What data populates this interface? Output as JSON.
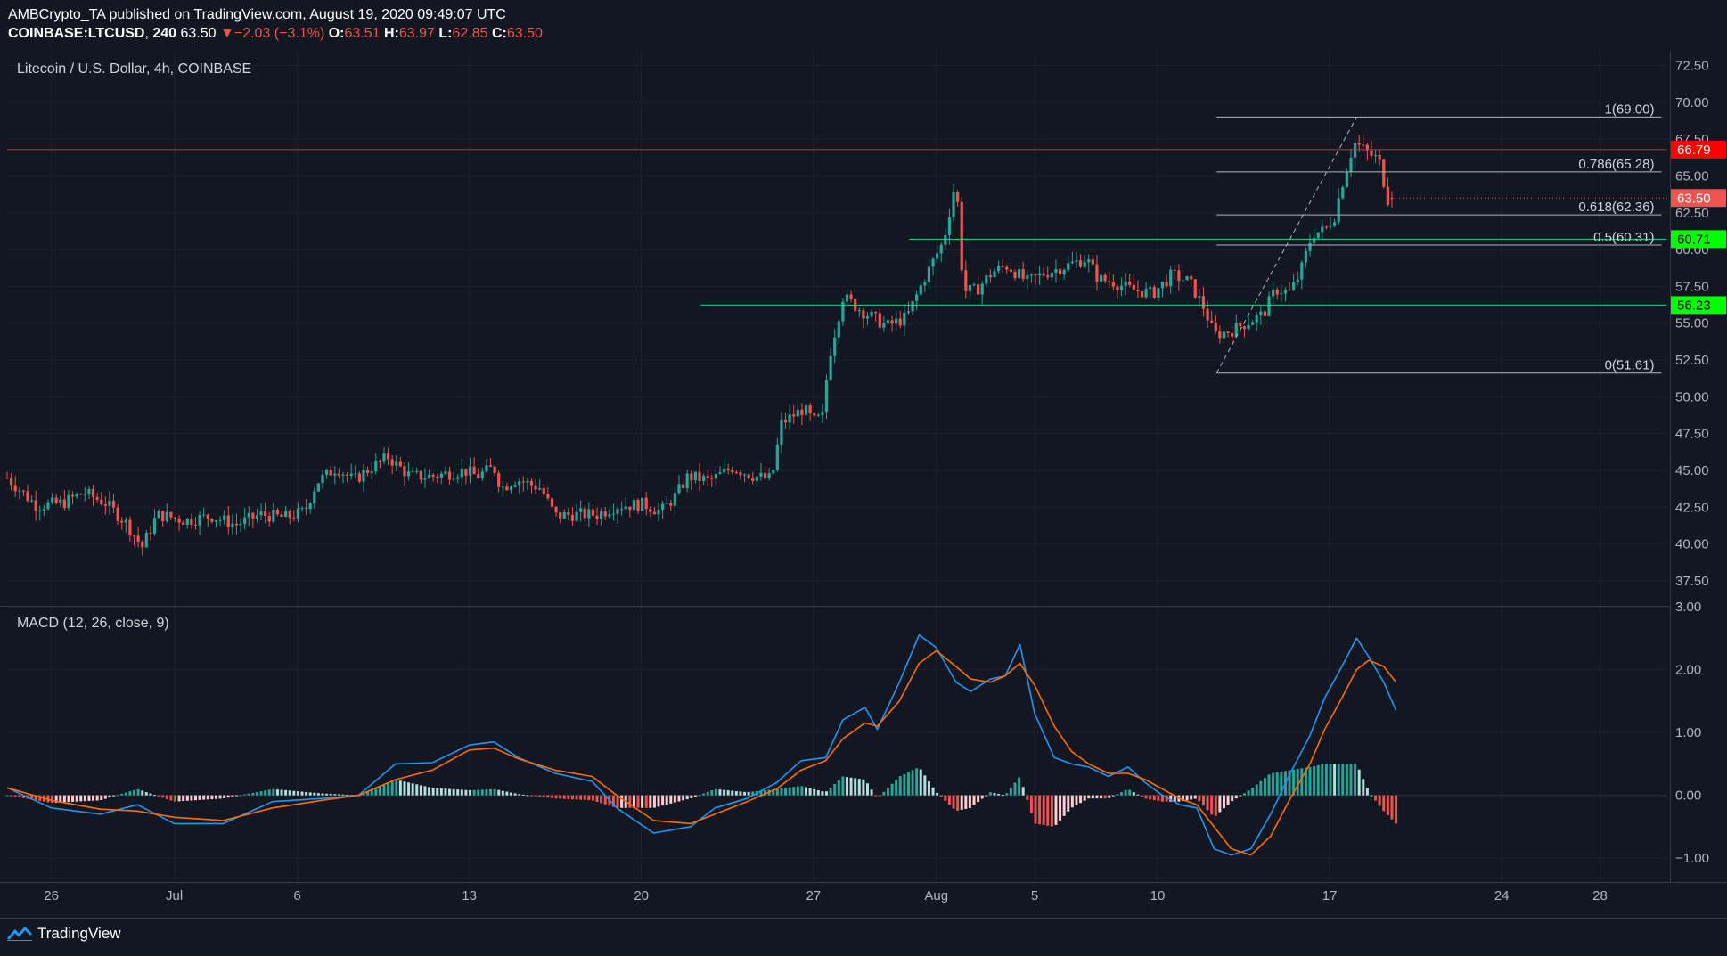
{
  "header": {
    "published_line": "AMBCrypto_TA published on TradingView.com, August 19, 2020 09:49:07 UTC",
    "symbol": "COINBASE:LTCUSD",
    "interval": "240",
    "last": "63.50",
    "change": "▼−2.03 (−3.1%)",
    "o_label": "O:",
    "o_value": "63.51",
    "h_label": "H:",
    "h_value": "63.97",
    "l_label": "L:",
    "l_value": "62.85",
    "c_label": "C:",
    "c_value": "63.50"
  },
  "footer": {
    "brand": "TradingView"
  },
  "colors": {
    "background": "#131722",
    "up": "#26a69a",
    "down": "#ef5350",
    "macd_line": "#2196f3",
    "signal_line": "#ff6d00",
    "resistance": "#ff1744",
    "support": "#00e676",
    "fib": "#b2b5be"
  },
  "chart_data": [
    {
      "type": "candlestick",
      "title": "Litecoin / U.S. Dollar, 4h, COINBASE",
      "y_ticks": [
        "72.50",
        "70.00",
        "67.50",
        "65.00",
        "62.50",
        "60.00",
        "57.50",
        "55.00",
        "52.50",
        "50.00",
        "47.50",
        "45.00",
        "42.50",
        "40.00",
        "37.50"
      ],
      "ylim": [
        35.8,
        73.5
      ],
      "x_ticks": [
        "26",
        "Jul",
        "6",
        "13",
        "20",
        "27",
        "Aug",
        "5",
        "10",
        "17",
        "24",
        "28"
      ],
      "x_tick_days": [
        0,
        5,
        10,
        17,
        24,
        31,
        36,
        40,
        45,
        52,
        59,
        63
      ],
      "x_domain_days": [
        -1.8,
        65.7
      ],
      "x_axis_reference": "June 26, 2020 = day 0",
      "anchor_points": [
        [
          -1.8,
          44.5
        ],
        [
          -0.6,
          42.6
        ],
        [
          0.5,
          42.8
        ],
        [
          1.3,
          43.5
        ],
        [
          2.2,
          42.8
        ],
        [
          3.0,
          41.5
        ],
        [
          3.7,
          39.8
        ],
        [
          4.3,
          42.0
        ],
        [
          5.5,
          41.6
        ],
        [
          6.5,
          41.9
        ],
        [
          7.5,
          41.3
        ],
        [
          8.5,
          42.0
        ],
        [
          9.5,
          41.8
        ],
        [
          10.3,
          42.2
        ],
        [
          10.8,
          44.2
        ],
        [
          11.6,
          45.2
        ],
        [
          12.3,
          44.3
        ],
        [
          13.0,
          45.2
        ],
        [
          13.7,
          45.9
        ],
        [
          14.6,
          44.6
        ],
        [
          15.5,
          44.6
        ],
        [
          16.8,
          45.0
        ],
        [
          17.3,
          44.6
        ],
        [
          18.0,
          45.2
        ],
        [
          18.3,
          43.8
        ],
        [
          18.9,
          44.4
        ],
        [
          19.9,
          43.8
        ],
        [
          20.5,
          41.9
        ],
        [
          21.2,
          42.0
        ],
        [
          22.2,
          42.0
        ],
        [
          23.0,
          42.6
        ],
        [
          24.1,
          42.7
        ],
        [
          24.8,
          42.2
        ],
        [
          25.4,
          43.3
        ],
        [
          25.9,
          44.6
        ],
        [
          26.8,
          44.3
        ],
        [
          27.7,
          45.2
        ],
        [
          28.6,
          44.6
        ],
        [
          29.3,
          44.4
        ],
        [
          29.7,
          48.2
        ],
        [
          30.6,
          49.2
        ],
        [
          31.0,
          48.3
        ],
        [
          31.4,
          48.7
        ],
        [
          31.6,
          52.4
        ],
        [
          32.2,
          56.8
        ],
        [
          33.0,
          55.8
        ],
        [
          34.0,
          54.8
        ],
        [
          34.8,
          55.4
        ],
        [
          35.5,
          58.0
        ],
        [
          36.3,
          60.6
        ],
        [
          36.8,
          64.8
        ],
        [
          37.1,
          57.2
        ],
        [
          37.6,
          57.2
        ],
        [
          38.3,
          58.5
        ],
        [
          38.9,
          58.9
        ],
        [
          39.7,
          57.8
        ],
        [
          40.4,
          58.4
        ],
        [
          41.3,
          58.9
        ],
        [
          42.1,
          59.4
        ],
        [
          42.6,
          58.0
        ],
        [
          43.2,
          57.8
        ],
        [
          43.9,
          57.3
        ],
        [
          44.8,
          57.0
        ],
        [
          45.6,
          58.3
        ],
        [
          46.3,
          57.8
        ],
        [
          46.9,
          56.0
        ],
        [
          47.3,
          54.2
        ],
        [
          48.0,
          54.5
        ],
        [
          48.8,
          55.2
        ],
        [
          49.3,
          55.6
        ],
        [
          49.8,
          57.3
        ],
        [
          50.4,
          57.1
        ],
        [
          50.8,
          58.4
        ],
        [
          51.3,
          61.1
        ],
        [
          51.8,
          61.3
        ],
        [
          52.2,
          62.3
        ],
        [
          52.5,
          64.4
        ],
        [
          53.0,
          67.3
        ],
        [
          53.6,
          66.5
        ],
        [
          54.0,
          66.1
        ],
        [
          54.4,
          63.2
        ],
        [
          54.6,
          63.5
        ]
      ],
      "series": [
        {
          "name": "Candles (OHLC, 4h)"
        }
      ],
      "horizontal_levels": [
        {
          "name": "resistance",
          "value": 66.79,
          "label": "66.79",
          "start_day": -1.8
        },
        {
          "name": "support-upper",
          "value": 60.71,
          "label": "60.71",
          "start_day": 34.9
        },
        {
          "name": "support-lower",
          "value": 56.23,
          "label": "56.23",
          "start_day": 26.4
        }
      ],
      "last_price": {
        "value": 63.5,
        "label": "63.50"
      },
      "fibonacci": {
        "start_day": 47.4,
        "end_day": 65.5,
        "levels": [
          {
            "ratio": "1",
            "value": 69.0,
            "label": "1(69.00)"
          },
          {
            "ratio": "0.786",
            "value": 65.28,
            "label": "0.786(65.28)"
          },
          {
            "ratio": "0.618",
            "value": 62.36,
            "label": "0.618(62.36)"
          },
          {
            "ratio": "0.5",
            "value": 60.31,
            "label": "0.5(60.31)"
          },
          {
            "ratio": "0",
            "value": 51.61,
            "label": "0(51.61)"
          }
        ],
        "trend_line": {
          "from": [
            47.4,
            51.61
          ],
          "to": [
            53.1,
            69.0
          ]
        }
      }
    },
    {
      "type": "line",
      "title": "MACD (12, 26, close, 9)",
      "y_ticks": [
        "3.00",
        "2.00",
        "1.00",
        "0.00",
        "−1.00"
      ],
      "ylim": [
        -1.38,
        3.0
      ],
      "series": [
        {
          "name": "MACD",
          "points": [
            [
              -1.8,
              0.12
            ],
            [
              0,
              -0.2
            ],
            [
              2,
              -0.3
            ],
            [
              3.5,
              -0.15
            ],
            [
              5,
              -0.45
            ],
            [
              7,
              -0.45
            ],
            [
              9,
              -0.1
            ],
            [
              11,
              -0.05
            ],
            [
              12.5,
              0.0
            ],
            [
              14,
              0.5
            ],
            [
              15.5,
              0.52
            ],
            [
              17,
              0.8
            ],
            [
              18,
              0.85
            ],
            [
              19,
              0.6
            ],
            [
              20.5,
              0.35
            ],
            [
              22,
              0.22
            ],
            [
              23,
              -0.2
            ],
            [
              24.5,
              -0.6
            ],
            [
              26,
              -0.5
            ],
            [
              27,
              -0.2
            ],
            [
              28.3,
              -0.05
            ],
            [
              29.5,
              0.2
            ],
            [
              30.5,
              0.55
            ],
            [
              31.5,
              0.6
            ],
            [
              32.2,
              1.2
            ],
            [
              33.1,
              1.4
            ],
            [
              33.6,
              1.05
            ],
            [
              34.5,
              1.8
            ],
            [
              35.3,
              2.55
            ],
            [
              36.0,
              2.35
            ],
            [
              36.8,
              1.8
            ],
            [
              37.4,
              1.65
            ],
            [
              38.2,
              1.85
            ],
            [
              38.8,
              1.9
            ],
            [
              39.4,
              2.4
            ],
            [
              40.0,
              1.3
            ],
            [
              40.8,
              0.6
            ],
            [
              41.5,
              0.5
            ],
            [
              42.2,
              0.45
            ],
            [
              43.0,
              0.3
            ],
            [
              43.8,
              0.45
            ],
            [
              44.5,
              0.2
            ],
            [
              45.2,
              0.0
            ],
            [
              45.9,
              -0.15
            ],
            [
              46.6,
              -0.2
            ],
            [
              47.3,
              -0.85
            ],
            [
              48.0,
              -0.95
            ],
            [
              48.8,
              -0.85
            ],
            [
              49.6,
              -0.3
            ],
            [
              50.4,
              0.35
            ],
            [
              51.2,
              0.95
            ],
            [
              51.8,
              1.55
            ],
            [
              52.5,
              2.05
            ],
            [
              53.1,
              2.5
            ],
            [
              53.6,
              2.2
            ],
            [
              54.2,
              1.8
            ],
            [
              54.7,
              1.35
            ]
          ]
        },
        {
          "name": "Signal",
          "points": [
            [
              -1.8,
              0.12
            ],
            [
              0,
              -0.08
            ],
            [
              2,
              -0.22
            ],
            [
              3.5,
              -0.25
            ],
            [
              5,
              -0.35
            ],
            [
              7,
              -0.4
            ],
            [
              9,
              -0.2
            ],
            [
              11,
              -0.08
            ],
            [
              12.5,
              0.0
            ],
            [
              14,
              0.25
            ],
            [
              15.5,
              0.4
            ],
            [
              17,
              0.72
            ],
            [
              18,
              0.75
            ],
            [
              19,
              0.58
            ],
            [
              20.5,
              0.4
            ],
            [
              22,
              0.3
            ],
            [
              23,
              0.0
            ],
            [
              24.5,
              -0.4
            ],
            [
              26,
              -0.45
            ],
            [
              27,
              -0.3
            ],
            [
              28.3,
              -0.1
            ],
            [
              29.5,
              0.1
            ],
            [
              30.5,
              0.4
            ],
            [
              31.5,
              0.55
            ],
            [
              32.2,
              0.9
            ],
            [
              33.1,
              1.15
            ],
            [
              33.6,
              1.1
            ],
            [
              34.5,
              1.5
            ],
            [
              35.3,
              2.1
            ],
            [
              36.0,
              2.3
            ],
            [
              36.8,
              2.05
            ],
            [
              37.4,
              1.85
            ],
            [
              38.2,
              1.8
            ],
            [
              38.8,
              1.9
            ],
            [
              39.4,
              2.1
            ],
            [
              40.0,
              1.75
            ],
            [
              40.8,
              1.1
            ],
            [
              41.5,
              0.7
            ],
            [
              42.2,
              0.5
            ],
            [
              43.0,
              0.35
            ],
            [
              43.8,
              0.35
            ],
            [
              44.5,
              0.25
            ],
            [
              45.2,
              0.1
            ],
            [
              45.9,
              -0.05
            ],
            [
              46.6,
              -0.15
            ],
            [
              47.3,
              -0.5
            ],
            [
              48.0,
              -0.85
            ],
            [
              48.8,
              -0.95
            ],
            [
              49.6,
              -0.65
            ],
            [
              50.4,
              -0.05
            ],
            [
              51.2,
              0.5
            ],
            [
              51.8,
              1.05
            ],
            [
              52.5,
              1.55
            ],
            [
              53.1,
              2.0
            ],
            [
              53.6,
              2.15
            ],
            [
              54.2,
              2.05
            ],
            [
              54.7,
              1.8
            ]
          ]
        }
      ],
      "histogram": "MACD minus Signal"
    }
  ]
}
